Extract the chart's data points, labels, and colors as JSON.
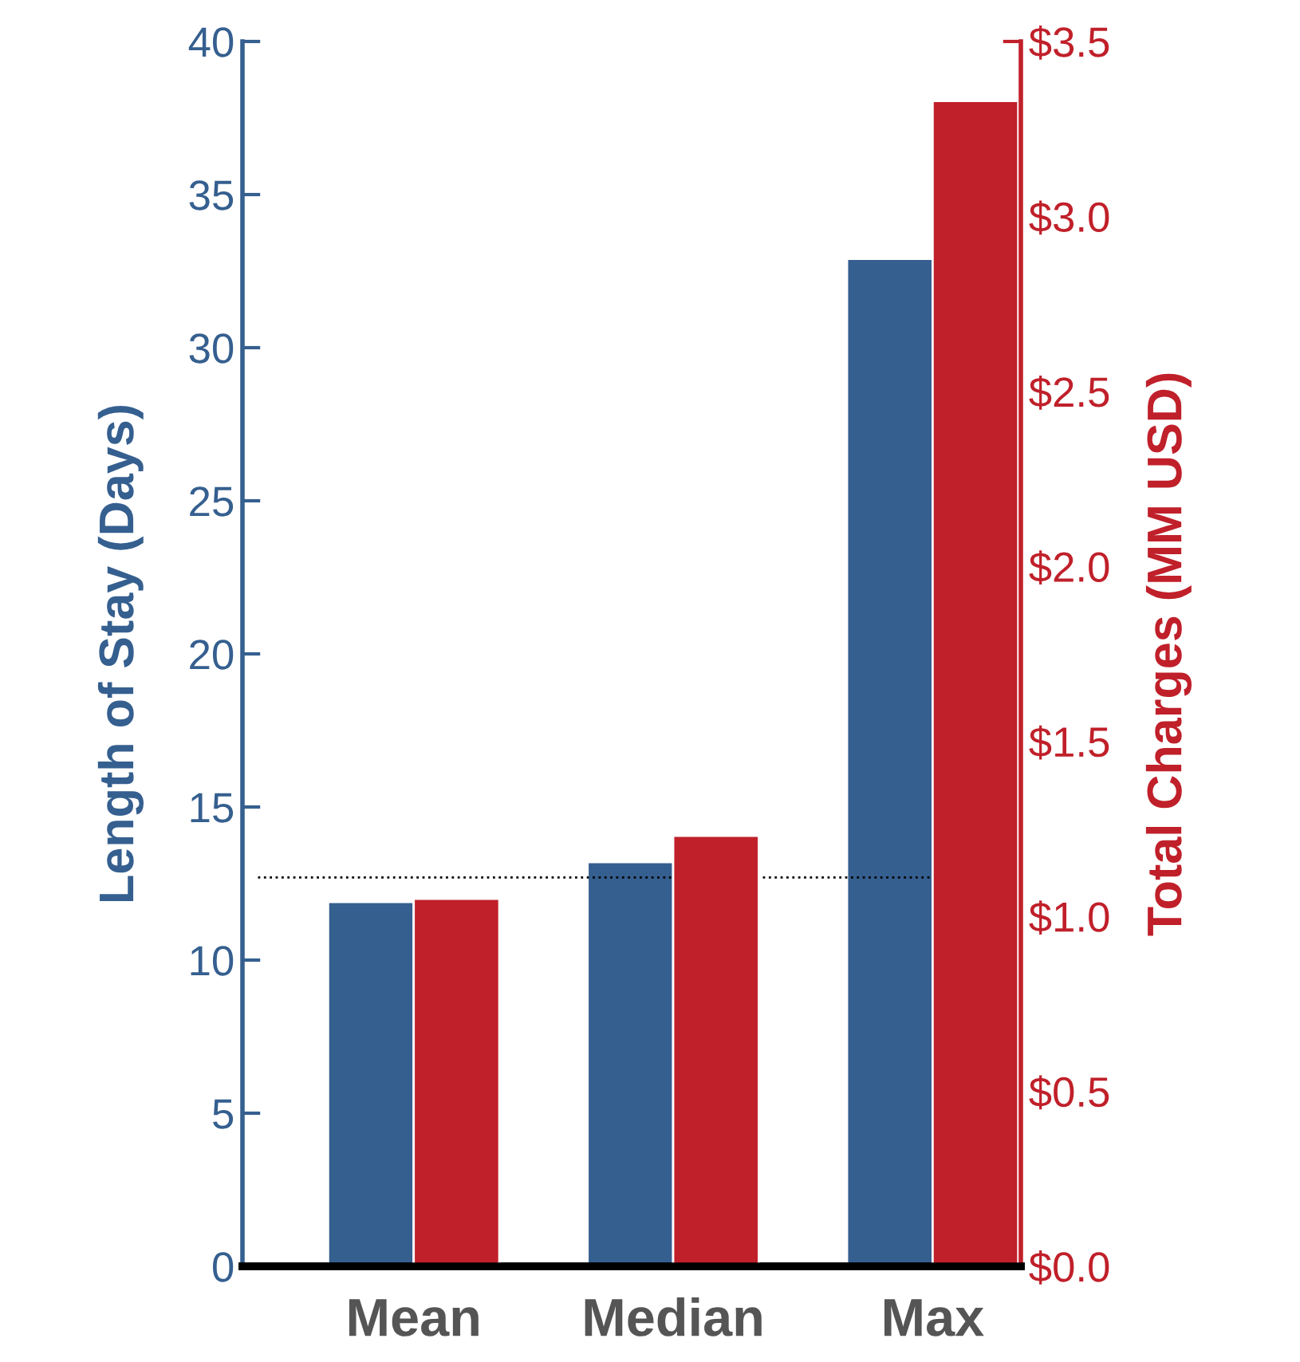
{
  "chart_data": {
    "type": "bar",
    "ylabel": "Length of Stay (Days)",
    "y2label": "Total Charges (MM USD)",
    "categories": [
      "Mean",
      "Median",
      "Max"
    ],
    "series": [
      {
        "color": "#355f8f",
        "values": [
          11.9,
          13.2,
          32.9
        ]
      },
      {
        "color": "#c0202a",
        "values": [
          1.05,
          1.23,
          3.33
        ],
        "axis": "y2"
      }
    ],
    "ylim": [
      0,
      40
    ],
    "yticks": [
      0,
      5,
      10,
      15,
      20,
      25,
      30,
      35,
      40
    ],
    "y2lim": [
      0,
      3.5
    ],
    "y2ticks": [
      {
        "value": 0,
        "label": "$0.0"
      },
      {
        "value": 0.5,
        "label": "$0.5"
      },
      {
        "value": 1.0,
        "label": "$1.0"
      },
      {
        "value": 1.5,
        "label": "$1.5"
      },
      {
        "value": 2.0,
        "label": "$2.0"
      },
      {
        "value": 2.5,
        "label": "$2.5"
      },
      {
        "value": 3.0,
        "label": "$3.0"
      },
      {
        "value": 3.5,
        "label": "$3.5"
      }
    ],
    "ref_lines": [
      {
        "axis": "y",
        "value": 12.7,
        "label": null,
        "color": "#000000",
        "line_style": "dotted"
      }
    ],
    "grid": false,
    "legend": false
  }
}
